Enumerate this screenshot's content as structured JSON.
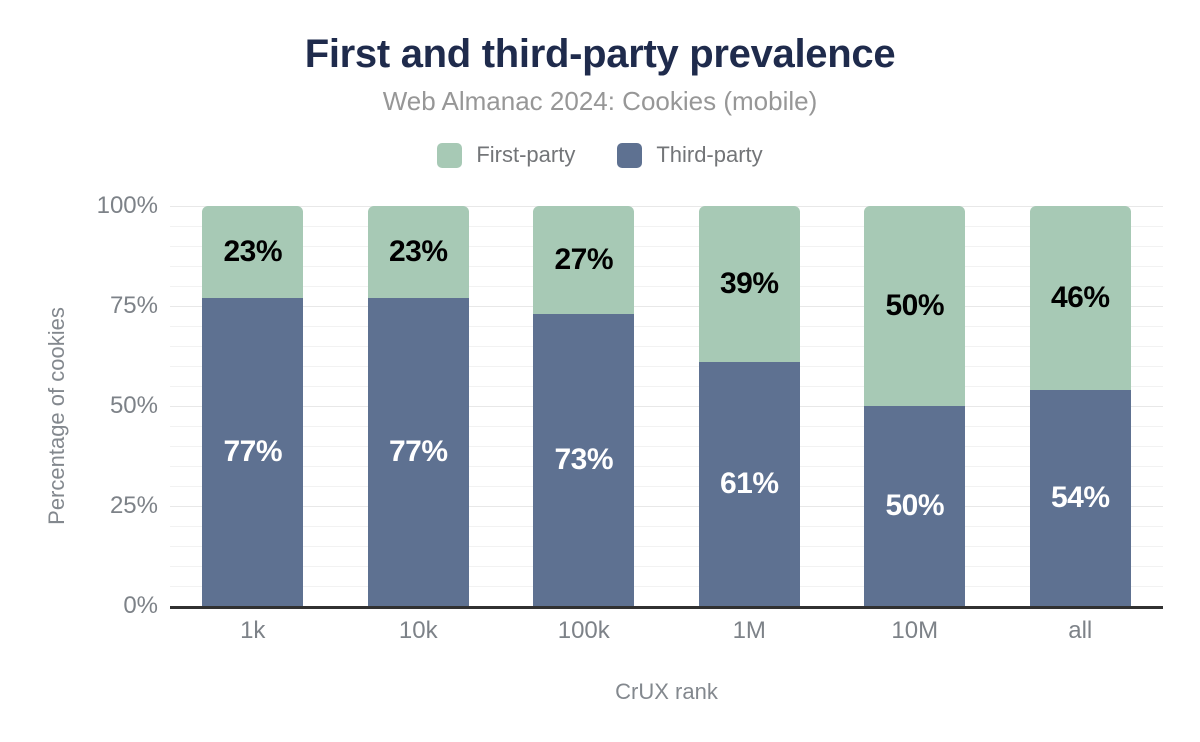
{
  "title": "First and third-party prevalence",
  "subtitle": "Web Almanac 2024: Cookies (mobile)",
  "legend": [
    {
      "label": "First-party",
      "color": "#a7c9b5"
    },
    {
      "label": "Third-party",
      "color": "#5e7191"
    }
  ],
  "colors": {
    "title": "#1f2b4c",
    "subtitle": "#979797",
    "axis_text": "#7d8288",
    "axis_line": "#313131",
    "first_party": "#a7c9b5",
    "third_party": "#5e7191",
    "label_on_first": "#000000",
    "label_on_third": "#ffffff"
  },
  "chart_data": {
    "type": "bar",
    "stacked": true,
    "title": "First and third-party prevalence",
    "subtitle": "Web Almanac 2024: Cookies (mobile)",
    "categories": [
      "1k",
      "10k",
      "100k",
      "1M",
      "10M",
      "all"
    ],
    "series": [
      {
        "name": "First-party",
        "color": "#a7c9b5",
        "values": [
          23,
          23,
          27,
          39,
          50,
          46
        ],
        "labels": [
          "23%",
          "23%",
          "27%",
          "39%",
          "50%",
          "46%"
        ]
      },
      {
        "name": "Third-party",
        "color": "#5e7191",
        "values": [
          77,
          77,
          73,
          61,
          50,
          54
        ],
        "labels": [
          "77%",
          "77%",
          "73%",
          "61%",
          "50%",
          "54%"
        ]
      }
    ],
    "xlabel": "CrUX rank",
    "ylabel": "Percentage of cookies",
    "yticks": [
      "100%",
      "75%",
      "50%",
      "25%",
      "0%"
    ],
    "ylim": [
      0,
      100
    ],
    "grid": "horizontal; minor every 5%, major every 25%",
    "legend_position": "top"
  }
}
